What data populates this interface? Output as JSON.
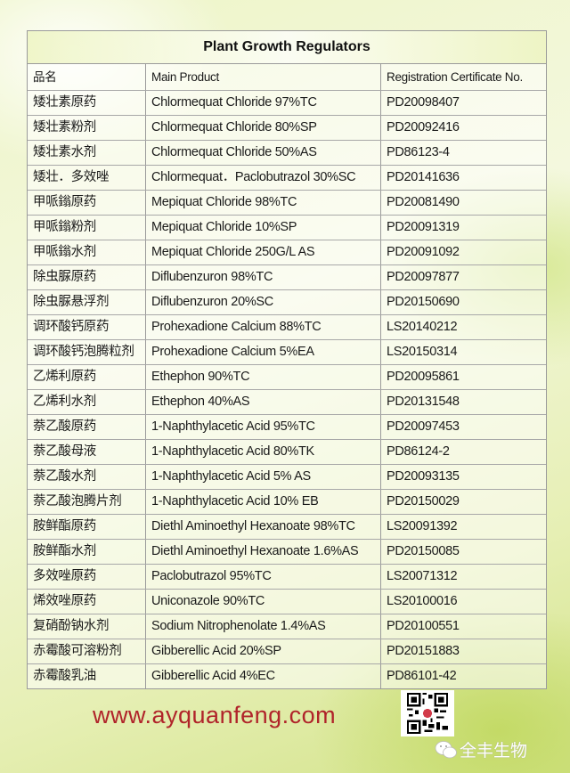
{
  "title": "Plant Growth Regulators",
  "headers": [
    "品名",
    "Main Product",
    "Registration Certificate No."
  ],
  "rows": [
    [
      "矮壮素原药",
      "Chlormequat Chloride 97%TC",
      "PD20098407"
    ],
    [
      "矮壮素粉剂",
      "Chlormequat Chloride 80%SP",
      "PD20092416"
    ],
    [
      "矮壮素水剂",
      "Chlormequat Chloride 50%AS",
      "PD86123-4"
    ],
    [
      "矮壮．多效唑",
      "Chlormequat．Paclobutrazol 30%SC",
      "PD20141636"
    ],
    [
      "甲哌鎓原药",
      "Mepiquat Chloride 98%TC",
      "PD20081490"
    ],
    [
      "甲哌鎓粉剂",
      "Mepiquat Chloride 10%SP",
      "PD20091319"
    ],
    [
      "甲哌鎓水剂",
      "Mepiquat Chloride 250G/L AS",
      "PD20091092"
    ],
    [
      "除虫脲原药",
      "Diflubenzuron 98%TC",
      "PD20097877"
    ],
    [
      "除虫脲悬浮剂",
      "Diflubenzuron 20%SC",
      "PD20150690"
    ],
    [
      "调环酸钙原药",
      "Prohexadione Calcium 88%TC",
      "LS20140212"
    ],
    [
      "调环酸钙泡腾粒剂",
      "Prohexadione Calcium 5%EA",
      "LS20150314"
    ],
    [
      "乙烯利原药",
      "Ethephon 90%TC",
      "PD20095861"
    ],
    [
      "乙烯利水剂",
      "Ethephon 40%AS",
      "PD20131548"
    ],
    [
      "萘乙酸原药",
      "1-Naphthylacetic Acid 95%TC",
      "PD20097453"
    ],
    [
      "萘乙酸母液",
      "1-Naphthylacetic Acid 80%TK",
      "PD86124-2"
    ],
    [
      "萘乙酸水剂",
      "1-Naphthylacetic Acid 5% AS",
      "PD20093135"
    ],
    [
      "萘乙酸泡腾片剂",
      "1-Naphthylacetic Acid 10% EB",
      "PD20150029"
    ],
    [
      "胺鲜酯原药",
      "Diethl Aminoethyl Hexanoate 98%TC",
      "LS20091392"
    ],
    [
      "胺鲜酯水剂",
      "Diethl Aminoethyl Hexanoate 1.6%AS",
      "PD20150085"
    ],
    [
      "多效唑原药",
      "Paclobutrazol 95%TC",
      "LS20071312"
    ],
    [
      "烯效唑原药",
      "Uniconazole 90%TC",
      "LS20100016"
    ],
    [
      "复硝酚钠水剂",
      "Sodium Nitrophenolate 1.4%AS",
      "PD20100551"
    ],
    [
      "赤霉酸可溶粉剂",
      "Gibberellic Acid 20%SP",
      "PD20151883"
    ],
    [
      "赤霉酸乳油",
      "Gibberellic Acid 4%EC",
      "PD86101-42"
    ]
  ],
  "footer": {
    "website": "www.ayquanfeng.com",
    "qr_icon": "qr-code",
    "wechat_icon": "wechat-logo",
    "wechat_name": "全丰生物"
  },
  "colors": {
    "website": "#b0242a",
    "background": "#eef5c8"
  }
}
